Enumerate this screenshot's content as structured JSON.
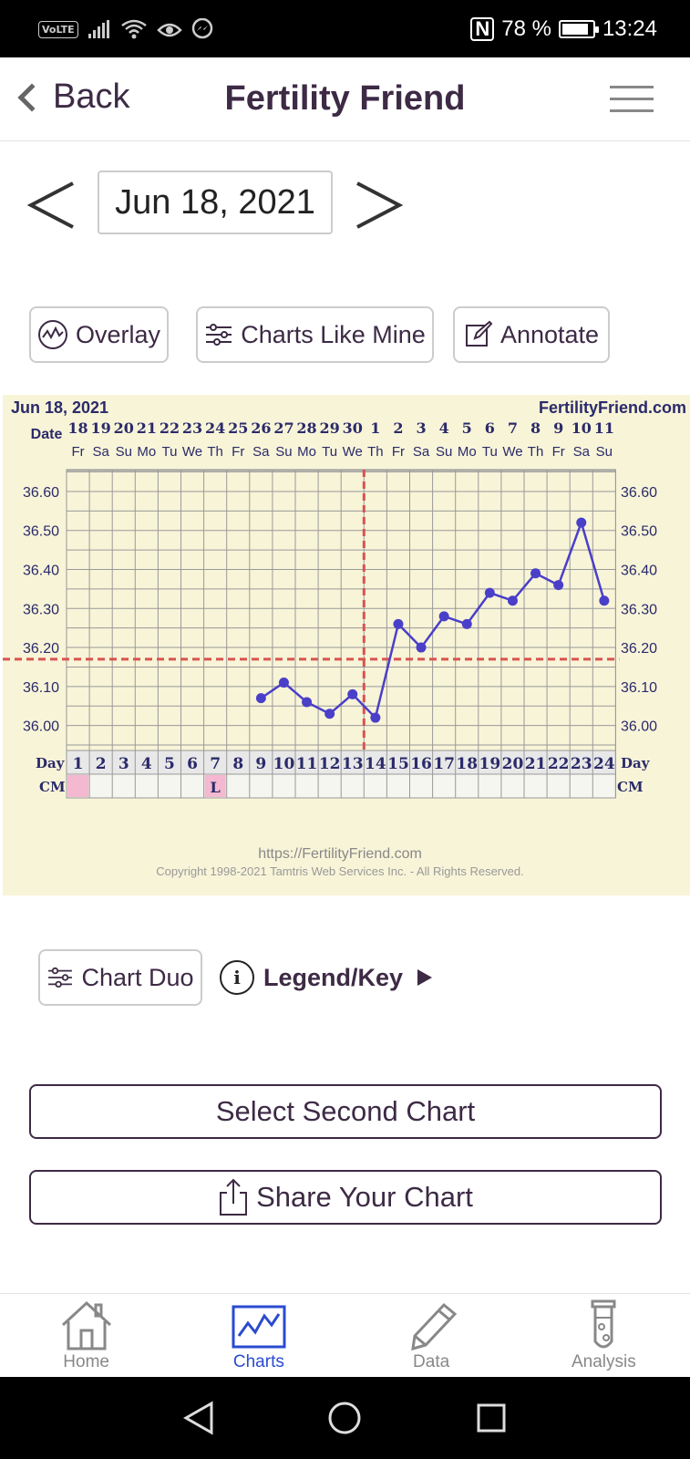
{
  "status_bar": {
    "volte": "VoLTE",
    "battery_percent": "78 %",
    "battery_level": 0.78,
    "time": "13:24",
    "icons": [
      "signal-icon",
      "wifi-icon",
      "eye-icon",
      "messenger-icon",
      "nfc-icon",
      "battery-icon"
    ]
  },
  "header": {
    "back_label": "Back",
    "title": "Fertility Friend",
    "menu_icon": "hamburger-menu-icon"
  },
  "date_picker": {
    "value": "Jun 18, 2021"
  },
  "actions": {
    "overlay": "Overlay",
    "charts_like_mine": "Charts Like Mine",
    "annotate": "Annotate"
  },
  "chart_data": {
    "type": "line",
    "start_date": "Jun 18, 2021",
    "brand": "FertilityFriend.com",
    "dates_label": "Date",
    "dates": [
      "18",
      "19",
      "20",
      "21",
      "22",
      "23",
      "24",
      "25",
      "26",
      "27",
      "28",
      "29",
      "30",
      "1",
      "2",
      "3",
      "4",
      "5",
      "6",
      "7",
      "8",
      "9",
      "10",
      "11"
    ],
    "weekdays": [
      "Fr",
      "Sa",
      "Su",
      "Mo",
      "Tu",
      "We",
      "Th",
      "Fr",
      "Sa",
      "Su",
      "Mo",
      "Tu",
      "We",
      "Th",
      "Fr",
      "Sa",
      "Su",
      "Mo",
      "Tu",
      "We",
      "Th",
      "Fr",
      "Sa",
      "Su"
    ],
    "day_label": "Day",
    "days": [
      "1",
      "2",
      "3",
      "4",
      "5",
      "6",
      "7",
      "8",
      "9",
      "10",
      "11",
      "12",
      "13",
      "14",
      "15",
      "16",
      "17",
      "18",
      "19",
      "20",
      "21",
      "22",
      "23",
      "24"
    ],
    "cm_label": "CM",
    "cm": [
      "pink",
      "",
      "",
      "",
      "",
      "",
      "L",
      "",
      "",
      "",
      "",
      "",
      "",
      "",
      "",
      "",
      "",
      "",
      "",
      "",
      "",
      "",
      "",
      ""
    ],
    "y_ticks": [
      "36.60",
      "36.50",
      "36.40",
      "36.30",
      "36.20",
      "36.10",
      "36.00"
    ],
    "ylim": [
      35.95,
      36.67
    ],
    "temperatures": [
      {
        "day": 9,
        "value": 36.07
      },
      {
        "day": 10,
        "value": 36.11
      },
      {
        "day": 11,
        "value": 36.06
      },
      {
        "day": 12,
        "value": 36.03
      },
      {
        "day": 13,
        "value": 36.08
      },
      {
        "day": 14,
        "value": 36.02
      },
      {
        "day": 15,
        "value": 36.26
      },
      {
        "day": 16,
        "value": 36.2
      },
      {
        "day": 17,
        "value": 36.28
      },
      {
        "day": 18,
        "value": 36.26
      },
      {
        "day": 19,
        "value": 36.34
      },
      {
        "day": 20,
        "value": 36.32
      },
      {
        "day": 21,
        "value": 36.39
      },
      {
        "day": 22,
        "value": 36.36
      },
      {
        "day": 23,
        "value": 36.52
      },
      {
        "day": 24,
        "value": 36.32
      }
    ],
    "coverline": 36.17,
    "ovulation_day": 14,
    "series_color": "#4a3fc8",
    "marker_color": "#d9534f",
    "footer_url": "https://FertilityFriend.com",
    "copyright": "Copyright 1998-2021 Tamtris Web Services Inc. - All Rights Reserved."
  },
  "below_chart": {
    "chart_duo": "Chart Duo",
    "legend": "Legend/Key",
    "legend_symbol": "i",
    "select_second": "Select Second Chart",
    "share": "Share Your Chart"
  },
  "bottom_nav": {
    "items": [
      {
        "label": "Home",
        "icon": "home-icon"
      },
      {
        "label": "Charts",
        "icon": "chart-icon",
        "active": true
      },
      {
        "label": "Data",
        "icon": "pencil-icon"
      },
      {
        "label": "Analysis",
        "icon": "test-tube-icon"
      }
    ]
  },
  "colors": {
    "primary_text": "#3d2a45",
    "active_nav": "#2a4bd0",
    "chart_bg": "#f8f4d8"
  }
}
